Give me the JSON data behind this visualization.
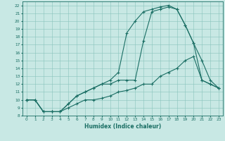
{
  "xlabel": "Humidex (Indice chaleur)",
  "xlim": [
    -0.5,
    23.5
  ],
  "ylim": [
    8,
    22.5
  ],
  "xticks": [
    0,
    1,
    2,
    3,
    4,
    5,
    6,
    7,
    8,
    9,
    10,
    11,
    12,
    13,
    14,
    15,
    16,
    17,
    18,
    19,
    20,
    21,
    22,
    23
  ],
  "yticks": [
    8,
    9,
    10,
    11,
    12,
    13,
    14,
    15,
    16,
    17,
    18,
    19,
    20,
    21,
    22
  ],
  "background_color": "#c8e8e4",
  "grid_color": "#88c4bc",
  "line_color": "#1a6e64",
  "line1_x": [
    0,
    1,
    2,
    3,
    4,
    5,
    6,
    7,
    8,
    9,
    10,
    11,
    12,
    13,
    14,
    15,
    16,
    17,
    18,
    19,
    20,
    21,
    22,
    23
  ],
  "line1_y": [
    10,
    10,
    8.5,
    8.5,
    8.5,
    9.5,
    10.5,
    11,
    11.5,
    12,
    12,
    12.5,
    12.5,
    12.5,
    17.5,
    21.2,
    21.5,
    21.8,
    21.5,
    19.5,
    17.2,
    12.5,
    12,
    11.5
  ],
  "line2_x": [
    0,
    1,
    2,
    3,
    4,
    5,
    6,
    7,
    8,
    9,
    10,
    11,
    12,
    13,
    14,
    15,
    16,
    17,
    18,
    19,
    20,
    21,
    22,
    23
  ],
  "line2_y": [
    10,
    10,
    8.5,
    8.5,
    8.5,
    9.5,
    10.5,
    11,
    11.5,
    12,
    12.5,
    13.5,
    18.5,
    20,
    21.2,
    21.5,
    21.8,
    22,
    21.5,
    19.5,
    17.2,
    15,
    12.5,
    11.5
  ],
  "line3_x": [
    0,
    1,
    2,
    3,
    4,
    5,
    6,
    7,
    8,
    9,
    10,
    11,
    12,
    13,
    14,
    15,
    16,
    17,
    18,
    19,
    20,
    21,
    22,
    23
  ],
  "line3_y": [
    10,
    10,
    8.5,
    8.5,
    8.5,
    9.0,
    9.5,
    10.0,
    10.0,
    10.2,
    10.5,
    11.0,
    11.2,
    11.5,
    12.0,
    12.0,
    13.0,
    13.5,
    14.0,
    15.0,
    15.5,
    12.5,
    12.0,
    11.5
  ]
}
